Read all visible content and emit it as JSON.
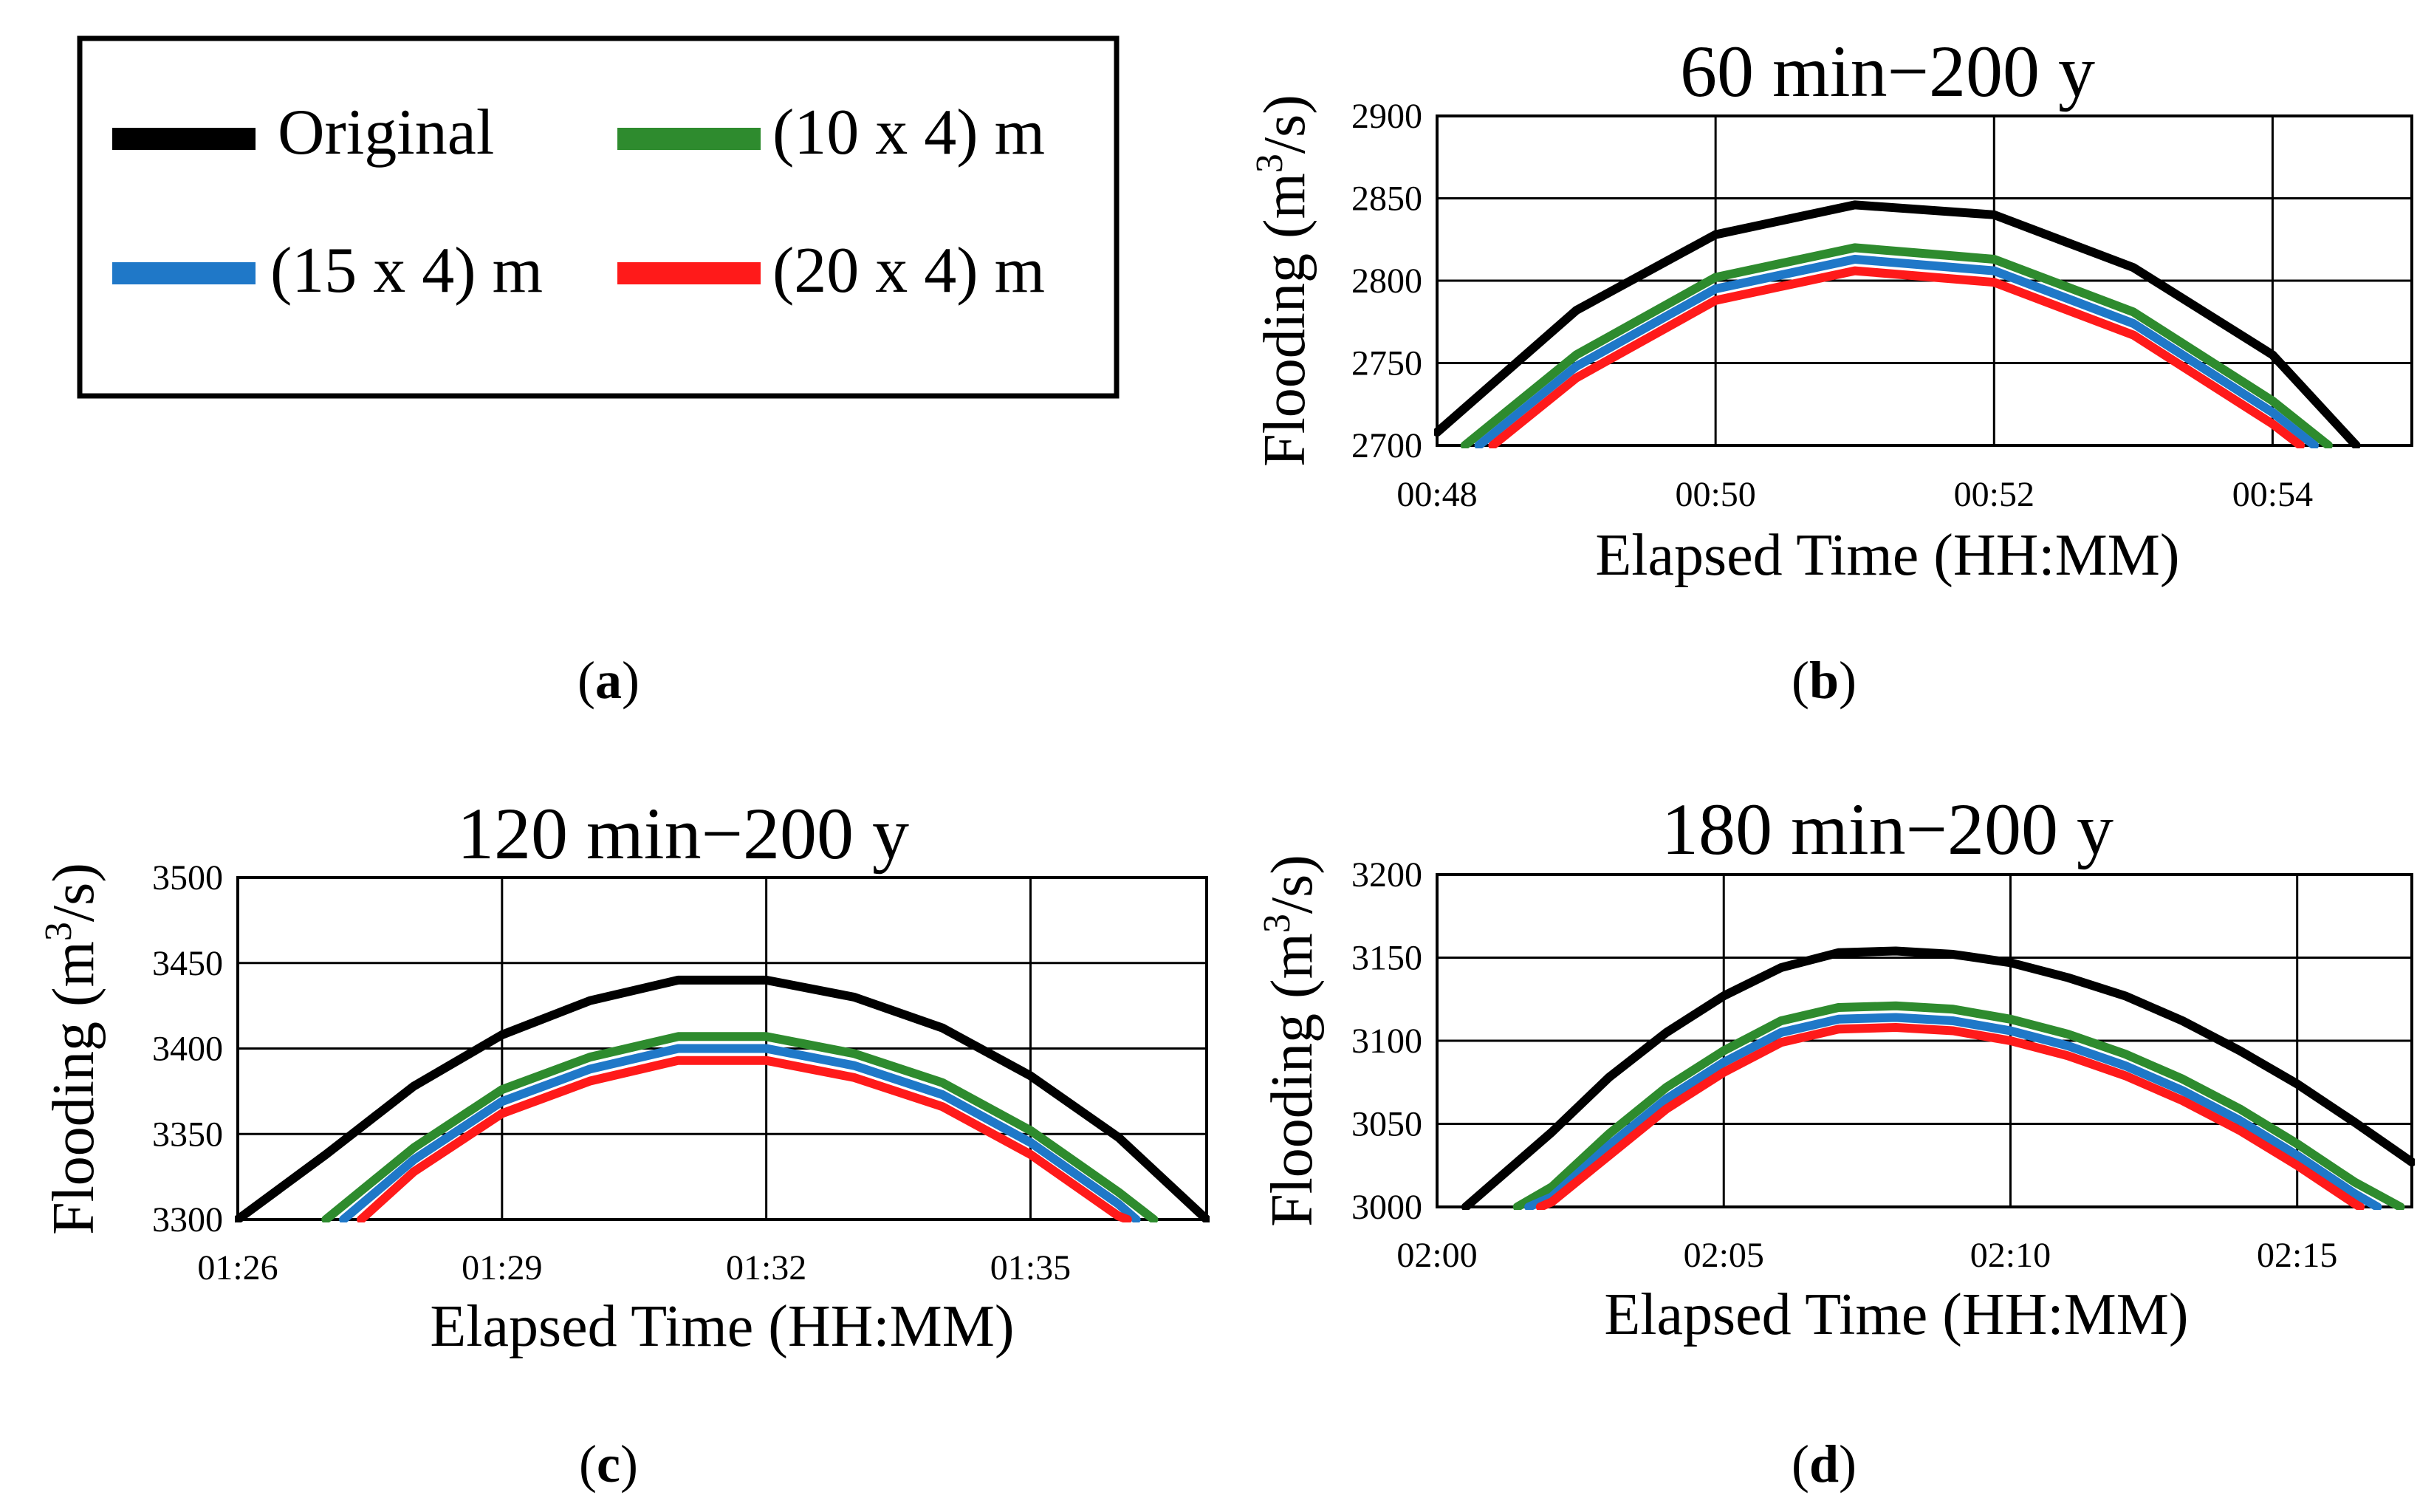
{
  "legend": {
    "items": [
      {
        "key": "original",
        "label": "Original",
        "color": "#000000"
      },
      {
        "key": "10x4",
        "label": "(10 x 4) m",
        "color": "#2e8b2e"
      },
      {
        "key": "15x4",
        "label": "(15 x 4) m",
        "color": "#1f78c8"
      },
      {
        "key": "20x4",
        "label": "(20 x 4) m",
        "color": "#ff1a1a"
      }
    ]
  },
  "panels": [
    {
      "label": "a"
    },
    {
      "label": "b"
    },
    {
      "label": "c"
    },
    {
      "label": "d"
    }
  ],
  "chart_data": [
    {
      "type": "line",
      "panel": "b",
      "title": "60 min−200 y",
      "xlabel": "Elapsed Time (HH:MM)",
      "ylabel_base": "Flooding (m",
      "ylabel_sup": "3",
      "ylabel_tail": "/s)",
      "xlim": [
        "00:48",
        "00:55"
      ],
      "ylim": [
        2700,
        2900
      ],
      "yticks": [
        2700,
        2750,
        2800,
        2850,
        2900
      ],
      "xticks": [
        "00:48",
        "00:50",
        "00:52",
        "00:54"
      ],
      "grid": true,
      "series": [
        {
          "name": "Original",
          "points": [
            [
              "00:48",
              2708
            ],
            [
              "00:49",
              2782
            ],
            [
              "00:50",
              2828
            ],
            [
              "00:51",
              2846
            ],
            [
              "00:52",
              2840
            ],
            [
              "00:53",
              2808
            ],
            [
              "00:54",
              2755
            ],
            [
              "00:54:36",
              2700
            ]
          ]
        },
        {
          "name": "(10 x 4) m",
          "points": [
            [
              "00:48:12",
              2700
            ],
            [
              "00:49",
              2755
            ],
            [
              "00:50",
              2802
            ],
            [
              "00:51",
              2820
            ],
            [
              "00:52",
              2813
            ],
            [
              "00:53",
              2781
            ],
            [
              "00:54",
              2727
            ],
            [
              "00:54:24",
              2700
            ]
          ]
        },
        {
          "name": "(15 x 4) m",
          "points": [
            [
              "00:48:18",
              2700
            ],
            [
              "00:49",
              2748
            ],
            [
              "00:50",
              2795
            ],
            [
              "00:51",
              2813
            ],
            [
              "00:52",
              2806
            ],
            [
              "00:53",
              2774
            ],
            [
              "00:54",
              2720
            ],
            [
              "00:54:18",
              2700
            ]
          ]
        },
        {
          "name": "(20 x 4) m",
          "points": [
            [
              "00:48:24",
              2700
            ],
            [
              "00:49",
              2741
            ],
            [
              "00:50",
              2788
            ],
            [
              "00:51",
              2806
            ],
            [
              "00:52",
              2799
            ],
            [
              "00:53",
              2767
            ],
            [
              "00:54",
              2713
            ],
            [
              "00:54:12",
              2700
            ]
          ]
        }
      ]
    },
    {
      "type": "line",
      "panel": "c",
      "title": "120 min−200 y",
      "xlabel": "Elapsed Time (HH:MM)",
      "ylabel_base": "Flooding (m",
      "ylabel_sup": "3",
      "ylabel_tail": "/s)",
      "xlim": [
        "01:26",
        "01:37"
      ],
      "ylim": [
        3300,
        3500
      ],
      "yticks": [
        3300,
        3350,
        3400,
        3450,
        3500
      ],
      "xticks": [
        "01:26",
        "01:29",
        "01:32",
        "01:35"
      ],
      "grid": true,
      "series": [
        {
          "name": "Original",
          "points": [
            [
              "01:26",
              3300
            ],
            [
              "01:27",
              3338
            ],
            [
              "01:28",
              3378
            ],
            [
              "01:29",
              3408
            ],
            [
              "01:30",
              3428
            ],
            [
              "01:31",
              3440
            ],
            [
              "01:32",
              3440
            ],
            [
              "01:33",
              3430
            ],
            [
              "01:34",
              3412
            ],
            [
              "01:35",
              3384
            ],
            [
              "01:36",
              3348
            ],
            [
              "01:37",
              3300
            ]
          ]
        },
        {
          "name": "(10 x 4) m",
          "points": [
            [
              "01:27",
              3300
            ],
            [
              "01:28",
              3342
            ],
            [
              "01:29",
              3376
            ],
            [
              "01:30",
              3395
            ],
            [
              "01:31",
              3407
            ],
            [
              "01:32",
              3407
            ],
            [
              "01:33",
              3397
            ],
            [
              "01:34",
              3380
            ],
            [
              "01:35",
              3352
            ],
            [
              "01:36",
              3316
            ],
            [
              "01:36:24",
              3300
            ]
          ]
        },
        {
          "name": "(15 x 4) m",
          "points": [
            [
              "01:27:12",
              3300
            ],
            [
              "01:28",
              3335
            ],
            [
              "01:29",
              3369
            ],
            [
              "01:30",
              3388
            ],
            [
              "01:31",
              3400
            ],
            [
              "01:32",
              3400
            ],
            [
              "01:33",
              3390
            ],
            [
              "01:34",
              3373
            ],
            [
              "01:35",
              3345
            ],
            [
              "01:36",
              3309
            ],
            [
              "01:36:12",
              3300
            ]
          ]
        },
        {
          "name": "(20 x 4) m",
          "points": [
            [
              "01:27:24",
              3300
            ],
            [
              "01:28",
              3328
            ],
            [
              "01:29",
              3362
            ],
            [
              "01:30",
              3381
            ],
            [
              "01:31",
              3393
            ],
            [
              "01:32",
              3393
            ],
            [
              "01:33",
              3383
            ],
            [
              "01:34",
              3366
            ],
            [
              "01:35",
              3338
            ],
            [
              "01:36",
              3302
            ],
            [
              "01:36:06",
              3300
            ]
          ]
        }
      ]
    },
    {
      "type": "line",
      "panel": "d",
      "title": "180 min−200 y",
      "xlabel": "Elapsed Time (HH:MM)",
      "ylabel_base": "Flooding (m",
      "ylabel_sup": "3",
      "ylabel_tail": "/s)",
      "xlim": [
        "02:00",
        "02:17"
      ],
      "ylim": [
        3000,
        3200
      ],
      "yticks": [
        3000,
        3050,
        3100,
        3150,
        3200
      ],
      "xticks": [
        "02:00",
        "02:05",
        "02:10",
        "02:15"
      ],
      "grid": true,
      "series": [
        {
          "name": "Original",
          "points": [
            [
              "02:00:30",
              3000
            ],
            [
              "02:02",
              3045
            ],
            [
              "02:03",
              3078
            ],
            [
              "02:04",
              3105
            ],
            [
              "02:05",
              3127
            ],
            [
              "02:06",
              3144
            ],
            [
              "02:07",
              3153
            ],
            [
              "02:08",
              3154
            ],
            [
              "02:09",
              3152
            ],
            [
              "02:10",
              3147
            ],
            [
              "02:11",
              3138
            ],
            [
              "02:12",
              3127
            ],
            [
              "02:13",
              3112
            ],
            [
              "02:14",
              3094
            ],
            [
              "02:15",
              3074
            ],
            [
              "02:16",
              3051
            ],
            [
              "02:17",
              3027
            ]
          ]
        },
        {
          "name": "(10 x 4) m",
          "points": [
            [
              "02:01:24",
              3000
            ],
            [
              "02:02",
              3012
            ],
            [
              "02:03",
              3044
            ],
            [
              "02:04",
              3072
            ],
            [
              "02:05",
              3094
            ],
            [
              "02:06",
              3112
            ],
            [
              "02:07",
              3120
            ],
            [
              "02:08",
              3121
            ],
            [
              "02:09",
              3119
            ],
            [
              "02:10",
              3113
            ],
            [
              "02:11",
              3104
            ],
            [
              "02:12",
              3092
            ],
            [
              "02:13",
              3077
            ],
            [
              "02:14",
              3059
            ],
            [
              "02:15",
              3038
            ],
            [
              "02:16",
              3015
            ],
            [
              "02:16:48",
              3000
            ]
          ]
        },
        {
          "name": "(15 x 4) m",
          "points": [
            [
              "02:01:36",
              3000
            ],
            [
              "02:02",
              3006
            ],
            [
              "02:03",
              3037
            ],
            [
              "02:04",
              3065
            ],
            [
              "02:05",
              3087
            ],
            [
              "02:06",
              3105
            ],
            [
              "02:07",
              3113
            ],
            [
              "02:08",
              3114
            ],
            [
              "02:09",
              3112
            ],
            [
              "02:10",
              3106
            ],
            [
              "02:11",
              3097
            ],
            [
              "02:12",
              3085
            ],
            [
              "02:13",
              3070
            ],
            [
              "02:14",
              3052
            ],
            [
              "02:15",
              3031
            ],
            [
              "02:16",
              3008
            ],
            [
              "02:16:24",
              3000
            ]
          ]
        },
        {
          "name": "(20 x 4) m",
          "points": [
            [
              "02:01:48",
              3000
            ],
            [
              "02:02",
              3003
            ],
            [
              "02:03",
              3031
            ],
            [
              "02:04",
              3059
            ],
            [
              "02:05",
              3081
            ],
            [
              "02:06",
              3099
            ],
            [
              "02:07",
              3107
            ],
            [
              "02:08",
              3108
            ],
            [
              "02:09",
              3106
            ],
            [
              "02:10",
              3100
            ],
            [
              "02:11",
              3091
            ],
            [
              "02:12",
              3079
            ],
            [
              "02:13",
              3064
            ],
            [
              "02:14",
              3046
            ],
            [
              "02:15",
              3025
            ],
            [
              "02:16",
              3002
            ],
            [
              "02:16:06",
              3000
            ]
          ]
        }
      ]
    }
  ]
}
